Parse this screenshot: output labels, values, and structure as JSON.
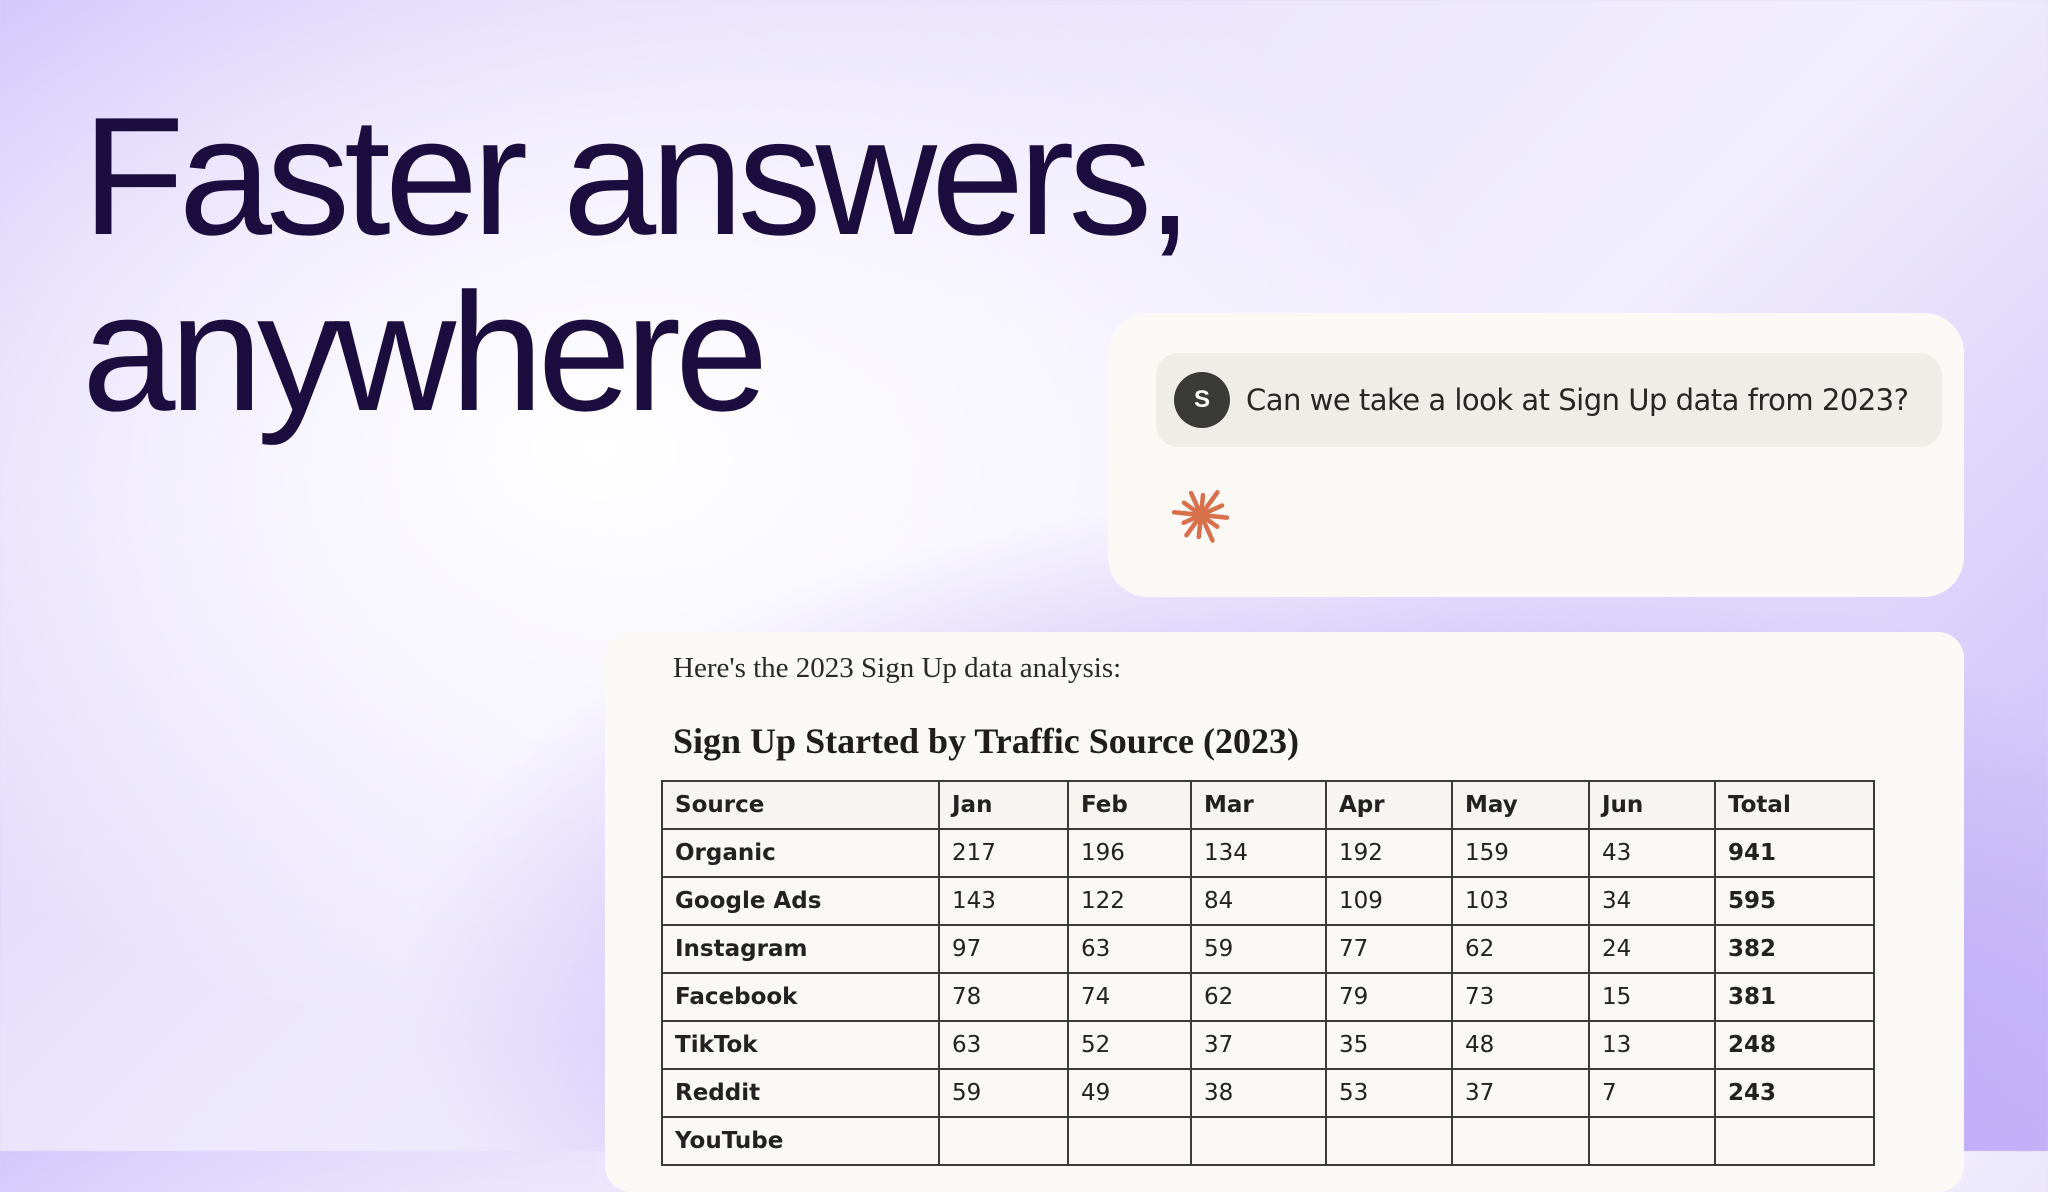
{
  "headline": {
    "line1": "Faster answers,",
    "line2": "anywhere"
  },
  "chat": {
    "avatar_initial": "S",
    "question": "Can we take a look at Sign Up data from 2023?",
    "assistant_icon": "sparkle-asterisk-icon",
    "accent_color": "#d9704c"
  },
  "response": {
    "intro": "Here's the 2023 Sign Up data analysis:",
    "title": "Sign Up Started by Traffic Source (2023)",
    "columns": [
      "Source",
      "Jan",
      "Feb",
      "Mar",
      "Apr",
      "May",
      "Jun",
      "Total"
    ],
    "rows": [
      [
        "Organic",
        "217",
        "196",
        "134",
        "192",
        "159",
        "43",
        "941"
      ],
      [
        "Google Ads",
        "143",
        "122",
        "84",
        "109",
        "103",
        "34",
        "595"
      ],
      [
        "Instagram",
        "97",
        "63",
        "59",
        "77",
        "62",
        "24",
        "382"
      ],
      [
        "Facebook",
        "78",
        "74",
        "62",
        "79",
        "73",
        "15",
        "381"
      ],
      [
        "TikTok",
        "63",
        "52",
        "37",
        "35",
        "48",
        "13",
        "248"
      ],
      [
        "Reddit",
        "59",
        "49",
        "38",
        "53",
        "37",
        "7",
        "243"
      ],
      [
        "YouTube",
        "",
        "",
        "",
        "",
        "",
        "",
        ""
      ]
    ]
  }
}
